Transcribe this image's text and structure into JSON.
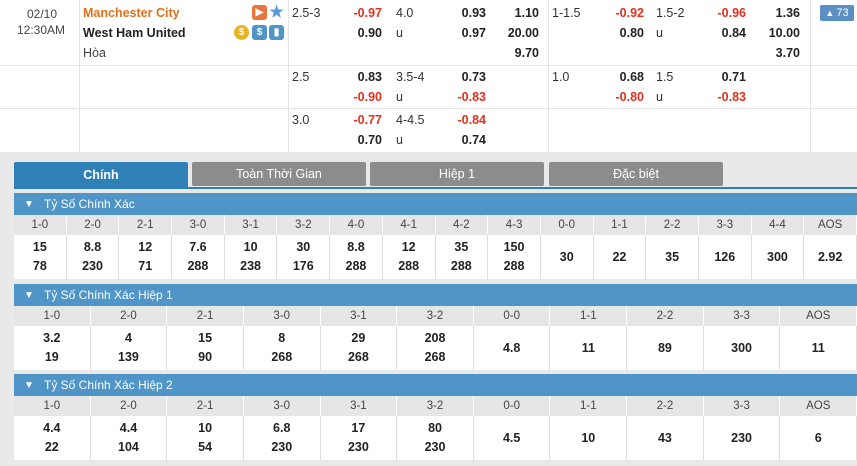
{
  "match": {
    "date": "02/10",
    "time": "12:30AM",
    "home": "Manchester City",
    "away": "West Ham United",
    "draw": "Hòa",
    "more_badge": "73"
  },
  "odds_rows": [
    {
      "hdp": "2.5-3",
      "hdp_home": "-0.97",
      "hdp_away": "0.90",
      "ou": "4.0",
      "ou_u": "u",
      "ou_over": "0.93",
      "ou_under": "0.97",
      "x12_home": "1.10",
      "x12_away": "20.00",
      "x12_draw": "9.70",
      "h1_hdp": "1-1.5",
      "h1_home": "-0.92",
      "h1_away": "0.80",
      "h1_ou": "1.5-2",
      "h1_u": "u",
      "h1_over": "-0.96",
      "h1_under": "0.84",
      "h1_x12_home": "1.36",
      "h1_x12_away": "10.00",
      "h1_x12_draw": "3.70"
    },
    {
      "hdp": "2.5",
      "hdp_home": "0.83",
      "hdp_away": "-0.90",
      "ou": "3.5-4",
      "ou_u": "u",
      "ou_over": "0.73",
      "ou_under": "-0.83",
      "h1_hdp": "1.0",
      "h1_home": "0.68",
      "h1_away": "-0.80",
      "h1_ou": "1.5",
      "h1_u": "u",
      "h1_over": "0.71",
      "h1_under": "-0.83"
    },
    {
      "hdp": "3.0",
      "hdp_home": "-0.77",
      "hdp_away": "0.70",
      "ou": "4-4.5",
      "ou_u": "u",
      "ou_over": "-0.84",
      "ou_under": "0.74"
    }
  ],
  "tabs": [
    "Chính",
    "Toàn Thời Gian",
    "Hiệp 1",
    "Đặc biệt"
  ],
  "sections": [
    {
      "title": "Tỷ Số Chính Xác",
      "headers": [
        "1-0",
        "2-0",
        "2-1",
        "3-0",
        "3-1",
        "3-2",
        "4-0",
        "4-1",
        "4-2",
        "4-3",
        "0-0",
        "1-1",
        "2-2",
        "3-3",
        "4-4",
        "AOS"
      ],
      "top": [
        "15",
        "8.8",
        "12",
        "7.6",
        "10",
        "30",
        "8.8",
        "12",
        "35",
        "150",
        "30",
        "22",
        "35",
        "126",
        "300",
        "2.92"
      ],
      "bottom": [
        "78",
        "230",
        "71",
        "288",
        "238",
        "176",
        "288",
        "288",
        "288",
        "288",
        "",
        "",
        "",
        "",
        "",
        ""
      ]
    },
    {
      "title": "Tỷ Số Chính Xác Hiệp 1",
      "headers": [
        "1-0",
        "2-0",
        "2-1",
        "3-0",
        "3-1",
        "3-2",
        "0-0",
        "1-1",
        "2-2",
        "3-3",
        "AOS"
      ],
      "top": [
        "3.2",
        "4",
        "15",
        "8",
        "29",
        "208",
        "4.8",
        "11",
        "89",
        "300",
        "11"
      ],
      "bottom": [
        "19",
        "139",
        "90",
        "268",
        "268",
        "268",
        "",
        "",
        "",
        "",
        ""
      ]
    },
    {
      "title": "Tỷ Số Chính Xác Hiệp 2",
      "headers": [
        "1-0",
        "2-0",
        "2-1",
        "3-0",
        "3-1",
        "3-2",
        "0-0",
        "1-1",
        "2-2",
        "3-3",
        "AOS"
      ],
      "top": [
        "4.4",
        "4.4",
        "10",
        "6.8",
        "17",
        "80",
        "4.5",
        "10",
        "43",
        "230",
        "6"
      ],
      "bottom": [
        "22",
        "104",
        "54",
        "230",
        "230",
        "230",
        "",
        "",
        "",
        "",
        ""
      ]
    }
  ],
  "colors": {
    "accent": "#2f80b7",
    "section_header": "#4f95c8",
    "negative": "#e0301e",
    "home_team": "#e0701a",
    "tab_inactive": "#8c8c8c"
  }
}
